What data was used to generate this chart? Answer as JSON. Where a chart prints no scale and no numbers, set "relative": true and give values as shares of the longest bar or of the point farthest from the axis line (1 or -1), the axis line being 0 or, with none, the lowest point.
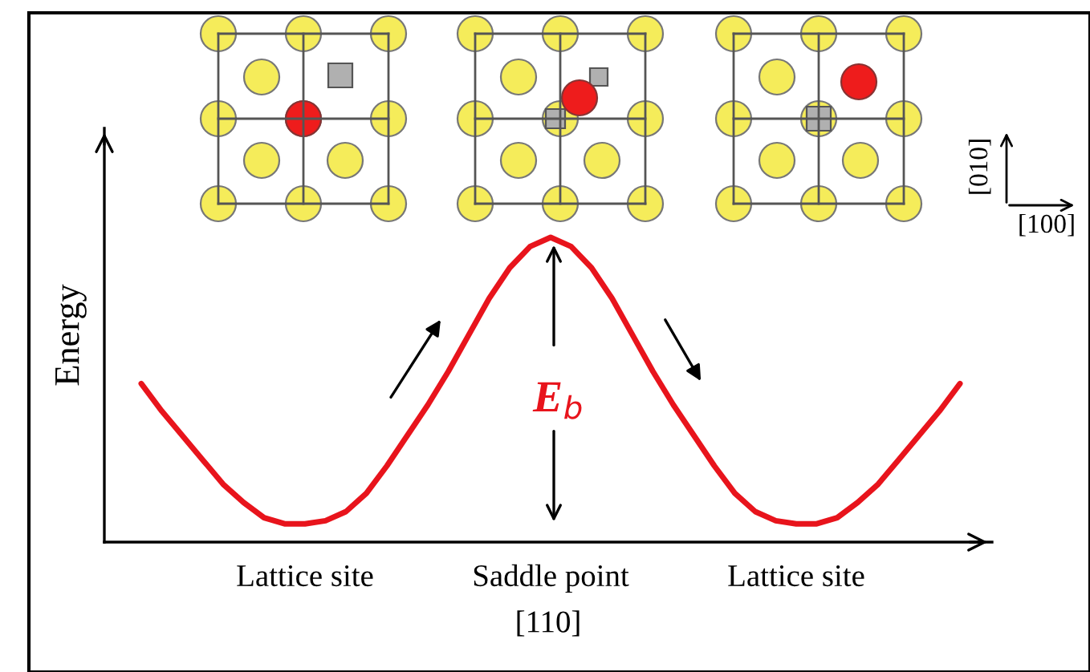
{
  "chart_data": {
    "type": "line",
    "relative": true,
    "xlabel": "[110]",
    "ylabel": "Energy",
    "categories": [
      null,
      null,
      null,
      null,
      null,
      null,
      null,
      null,
      "Lattice site",
      null,
      null,
      null,
      null,
      null,
      null,
      null,
      null,
      null,
      null,
      null,
      "Saddle point",
      null,
      null,
      null,
      null,
      null,
      null,
      null,
      null,
      null,
      null,
      null,
      "Lattice site",
      null,
      null,
      null,
      null,
      null,
      null,
      null,
      null
    ],
    "series": [
      {
        "color": "#e8141c",
        "values": [
          0.52,
          0.43,
          0.35,
          0.27,
          0.19,
          0.13,
          0.08,
          0.06,
          0.06,
          0.07,
          0.1,
          0.16,
          0.25,
          0.35,
          0.45,
          0.56,
          0.68,
          0.8,
          0.9,
          0.97,
          1.0,
          0.97,
          0.9,
          0.8,
          0.68,
          0.56,
          0.45,
          0.35,
          0.25,
          0.16,
          0.1,
          0.07,
          0.06,
          0.06,
          0.08,
          0.13,
          0.19,
          0.27,
          0.35,
          0.43,
          0.52
        ]
      }
    ],
    "annotations": [
      "E$_{b}$",
      "[010]",
      "[100]"
    ],
    "grid": false,
    "legend": false,
    "marker": "none",
    "line_style": "solid"
  }
}
